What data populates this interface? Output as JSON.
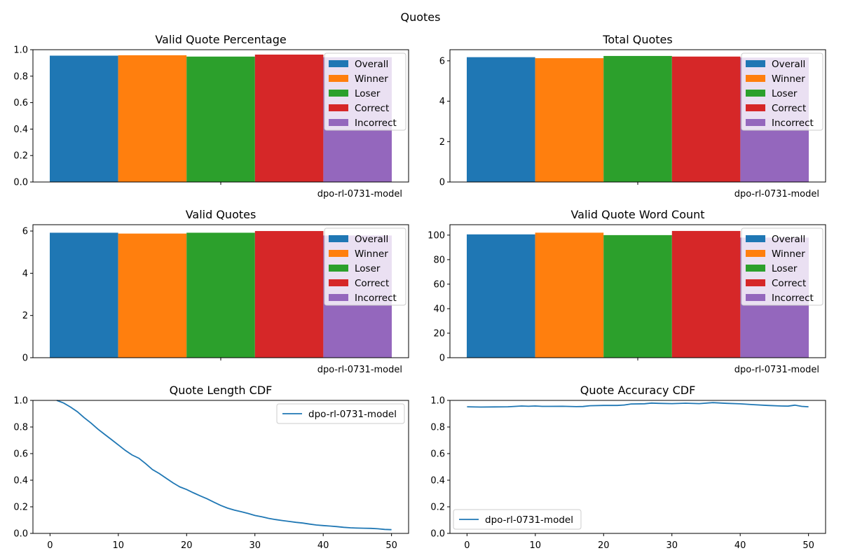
{
  "figure_title": "Quotes",
  "chart_data": [
    {
      "type": "bar",
      "title": "Valid Quote Percentage",
      "categories": [
        "dpo-rl-0731-model"
      ],
      "ylim": [
        0,
        1
      ],
      "yticks": [
        "0.0",
        "0.2",
        "0.4",
        "0.6",
        "0.8",
        "1.0"
      ],
      "legend": "top-right",
      "series": [
        {
          "name": "Overall",
          "values": [
            0.955
          ],
          "color": "#1f77b4"
        },
        {
          "name": "Winner",
          "values": [
            0.958
          ],
          "color": "#ff7f0e"
        },
        {
          "name": "Loser",
          "values": [
            0.948
          ],
          "color": "#2ca02c"
        },
        {
          "name": "Correct",
          "values": [
            0.963
          ],
          "color": "#d62728"
        },
        {
          "name": "Incorrect",
          "values": [
            0.943
          ],
          "color": "#9467bd"
        }
      ]
    },
    {
      "type": "bar",
      "title": "Total Quotes",
      "categories": [
        "dpo-rl-0731-model"
      ],
      "ylim": [
        0,
        6.55
      ],
      "yticks": [
        "0",
        "2",
        "4",
        "6"
      ],
      "legend": "top-right",
      "series": [
        {
          "name": "Overall",
          "values": [
            6.18
          ],
          "color": "#1f77b4"
        },
        {
          "name": "Winner",
          "values": [
            6.13
          ],
          "color": "#ff7f0e"
        },
        {
          "name": "Loser",
          "values": [
            6.24
          ],
          "color": "#2ca02c"
        },
        {
          "name": "Correct",
          "values": [
            6.21
          ],
          "color": "#d62728"
        },
        {
          "name": "Incorrect",
          "values": [
            6.16
          ],
          "color": "#9467bd"
        }
      ]
    },
    {
      "type": "bar",
      "title": "Valid Quotes",
      "categories": [
        "dpo-rl-0731-model"
      ],
      "ylim": [
        0,
        6.3
      ],
      "yticks": [
        "0",
        "2",
        "4",
        "6"
      ],
      "legend": "top-right",
      "series": [
        {
          "name": "Overall",
          "values": [
            5.92
          ],
          "color": "#1f77b4"
        },
        {
          "name": "Winner",
          "values": [
            5.88
          ],
          "color": "#ff7f0e"
        },
        {
          "name": "Loser",
          "values": [
            5.92
          ],
          "color": "#2ca02c"
        },
        {
          "name": "Correct",
          "values": [
            6.0
          ],
          "color": "#d62728"
        },
        {
          "name": "Incorrect",
          "values": [
            5.79
          ],
          "color": "#9467bd"
        }
      ]
    },
    {
      "type": "bar",
      "title": "Valid Quote Word Count",
      "categories": [
        "dpo-rl-0731-model"
      ],
      "ylim": [
        0,
        108.5
      ],
      "yticks": [
        "0",
        "20",
        "40",
        "60",
        "80",
        "100"
      ],
      "legend": "top-right",
      "series": [
        {
          "name": "Overall",
          "values": [
            100.6
          ],
          "color": "#1f77b4"
        },
        {
          "name": "Winner",
          "values": [
            102.0
          ],
          "color": "#ff7f0e"
        },
        {
          "name": "Loser",
          "values": [
            100.0
          ],
          "color": "#2ca02c"
        },
        {
          "name": "Correct",
          "values": [
            103.4
          ],
          "color": "#d62728"
        },
        {
          "name": "Incorrect",
          "values": [
            98.0
          ],
          "color": "#9467bd"
        }
      ]
    },
    {
      "type": "line",
      "title": "Quote Length CDF",
      "xlim": [
        -2.5,
        52.5
      ],
      "ylim": [
        0,
        1
      ],
      "xticks": [
        "0",
        "10",
        "20",
        "30",
        "40",
        "50"
      ],
      "yticks": [
        "0.0",
        "0.2",
        "0.4",
        "0.6",
        "0.8",
        "1.0"
      ],
      "legend": "top-right",
      "series": [
        {
          "name": "dpo-rl-0731-model",
          "color": "#1f77b4",
          "x": [
            1,
            2,
            3,
            4,
            5,
            6,
            7,
            8,
            9,
            10,
            11,
            12,
            13,
            14,
            15,
            16,
            17,
            18,
            19,
            20,
            21,
            22,
            23,
            24,
            25,
            26,
            27,
            28,
            29,
            30,
            31,
            32,
            33,
            34,
            35,
            36,
            37,
            38,
            39,
            40,
            41,
            42,
            43,
            44,
            45,
            46,
            47,
            48,
            49,
            50
          ],
          "y": [
            1.0,
            0.98,
            0.95,
            0.915,
            0.87,
            0.83,
            0.785,
            0.745,
            0.705,
            0.665,
            0.625,
            0.59,
            0.565,
            0.525,
            0.48,
            0.45,
            0.415,
            0.38,
            0.35,
            0.33,
            0.305,
            0.282,
            0.26,
            0.235,
            0.21,
            0.19,
            0.175,
            0.163,
            0.15,
            0.135,
            0.125,
            0.113,
            0.104,
            0.097,
            0.09,
            0.083,
            0.078,
            0.07,
            0.063,
            0.059,
            0.055,
            0.051,
            0.046,
            0.042,
            0.04,
            0.039,
            0.038,
            0.035,
            0.03,
            0.028
          ]
        }
      ]
    },
    {
      "type": "line",
      "title": "Quote Accuracy CDF",
      "xlim": [
        -2.5,
        52.5
      ],
      "ylim": [
        0,
        1
      ],
      "xticks": [
        "0",
        "10",
        "20",
        "30",
        "40",
        "50"
      ],
      "yticks": [
        "0.0",
        "0.2",
        "0.4",
        "0.6",
        "0.8",
        "1.0"
      ],
      "legend": "bottom-left",
      "series": [
        {
          "name": "dpo-rl-0731-model",
          "color": "#1f77b4",
          "x": [
            0,
            2,
            4,
            6,
            8,
            9,
            10,
            11,
            12,
            14,
            16,
            17,
            18,
            20,
            22,
            23,
            24,
            26,
            27,
            28,
            30,
            32,
            34,
            36,
            38,
            40,
            42,
            44,
            46,
            47,
            48,
            49,
            50
          ],
          "y": [
            0.952,
            0.95,
            0.951,
            0.952,
            0.958,
            0.956,
            0.958,
            0.955,
            0.955,
            0.956,
            0.953,
            0.954,
            0.96,
            0.962,
            0.962,
            0.965,
            0.973,
            0.975,
            0.98,
            0.978,
            0.976,
            0.979,
            0.976,
            0.983,
            0.978,
            0.974,
            0.968,
            0.962,
            0.958,
            0.957,
            0.964,
            0.955,
            0.952
          ]
        }
      ]
    }
  ]
}
